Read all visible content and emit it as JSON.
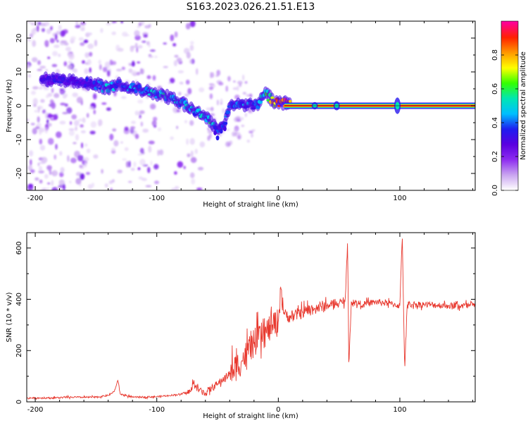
{
  "figure": {
    "title": "S163.2023.026.21.51.E13"
  },
  "chart_data": [
    {
      "type": "heatmap",
      "xlabel": "Height of straight line (km)",
      "ylabel": "Frequency (Hz)",
      "xlim": [
        -207,
        162
      ],
      "ylim": [
        -25,
        25
      ],
      "xticks": [
        -200,
        -100,
        0,
        100
      ],
      "yticks": [
        -20,
        -10,
        0,
        10,
        20
      ],
      "colorbar": {
        "label": "Normalized spectral amplitude",
        "range": [
          0,
          1
        ],
        "ticks": [
          0.0,
          0.2,
          0.4,
          0.6,
          0.8
        ],
        "colormap": [
          "#ffffff",
          "#c9a4f0",
          "#8d2bf0",
          "#5a00e0",
          "#1e1ef0",
          "#00bfff",
          "#00e6b4",
          "#33ff00",
          "#ffff00",
          "#ff9900",
          "#ff2200",
          "#ff0099"
        ]
      },
      "ridge": {
        "description": "dominant frequency vs height",
        "x": [
          -195,
          -180,
          -165,
          -150,
          -140,
          -130,
          -120,
          -110,
          -100,
          -90,
          -80,
          -70,
          -60,
          -55,
          -50,
          -45,
          -40,
          -30,
          -20,
          -15,
          -12,
          -10,
          -5,
          0,
          20,
          40,
          60,
          80,
          100,
          120,
          150,
          162
        ],
        "y": [
          8,
          7.5,
          7,
          6.5,
          5,
          6.5,
          5.5,
          4.5,
          3.5,
          2.5,
          1,
          -1,
          -3.5,
          -5,
          -7.5,
          -6,
          0,
          0.5,
          0,
          1,
          3,
          4,
          1.5,
          1,
          0,
          0,
          0,
          0,
          0,
          0,
          0,
          0
        ],
        "amplitude": [
          0.3,
          0.3,
          0.3,
          0.35,
          0.45,
          0.4,
          0.4,
          0.4,
          0.45,
          0.5,
          0.5,
          0.45,
          0.5,
          0.5,
          0.35,
          0.35,
          0.35,
          0.4,
          0.4,
          0.45,
          0.45,
          0.5,
          0.7,
          0.85,
          0.95,
          0.95,
          0.95,
          0.95,
          0.95,
          0.95,
          0.95,
          0.95
        ]
      }
    },
    {
      "type": "line",
      "xlabel": "Height of straight line (km)",
      "ylabel": "SNR (10 * v/v)",
      "xlim": [
        -207,
        162
      ],
      "ylim": [
        0,
        660
      ],
      "xticks": [
        -200,
        -100,
        0,
        100
      ],
      "yticks": [
        0,
        200,
        400,
        600
      ],
      "color": "#e8392f",
      "series": [
        {
          "x": [
            -207,
            -190,
            -170,
            -150,
            -140,
            -135,
            -132,
            -130,
            -120,
            -100,
            -90,
            -80,
            -72,
            -70,
            -65,
            -60,
            -50,
            -40,
            -30,
            -20,
            -10,
            -5,
            0,
            2,
            5,
            10,
            20,
            30,
            40,
            50,
            55,
            57,
            58,
            60,
            70,
            80,
            90,
            100,
            102,
            104,
            106,
            110,
            120,
            140,
            162
          ],
          "y": [
            15,
            15,
            18,
            18,
            25,
            40,
            85,
            30,
            18,
            20,
            25,
            30,
            40,
            72,
            45,
            35,
            70,
            110,
            160,
            230,
            270,
            300,
            310,
            450,
            340,
            330,
            350,
            365,
            375,
            385,
            390,
            630,
            130,
            390,
            380,
            390,
            385,
            375,
            650,
            120,
            380,
            380,
            380,
            375,
            375
          ]
        }
      ]
    }
  ]
}
